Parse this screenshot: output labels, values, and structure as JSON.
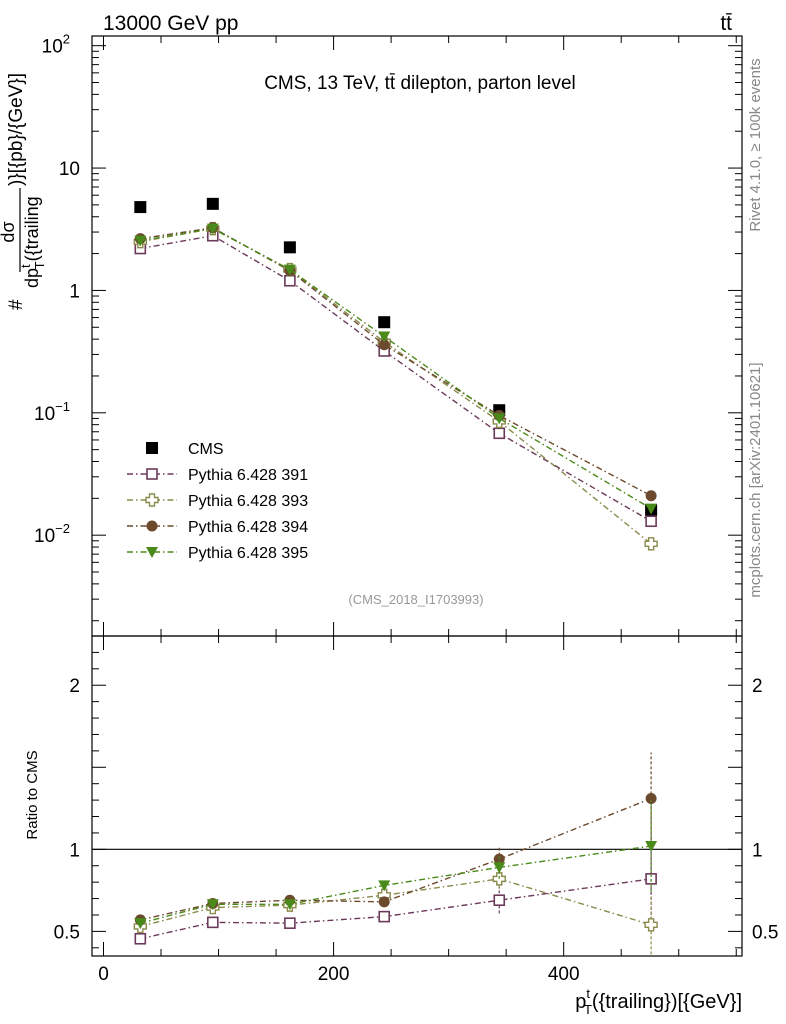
{
  "header": {
    "left": "13000 GeV pp",
    "right": "tt̄"
  },
  "side_labels": {
    "rivet": "Rivet 4.1.0, ≥ 100k events",
    "mcplots": "mcplots.cern.ch [arXiv:2401.10621]"
  },
  "chart_data": [
    {
      "type": "scatter",
      "title": "CMS, 13 TeV, tt̄ dilepton, parton level",
      "analysis_id": "(CMS_2018_I1703993)",
      "xlabel": "p_T^t({trailing})[{GeV}]",
      "ylabel": "#dσ/dp_T^t({trailing})}[{pb}/{GeV}]",
      "yscale": "log",
      "xlim": [
        -10,
        555
      ],
      "ylim": [
        0.0015,
        120
      ],
      "x_ticks": [
        0,
        200,
        400
      ],
      "y_ticks": [
        "10^-2",
        "10^-1",
        "1",
        "10",
        "10^2"
      ],
      "x": [
        32,
        95,
        162,
        244,
        344,
        476
      ],
      "series": [
        {
          "name": "CMS",
          "color": "#000000",
          "marker": "square-filled",
          "values": [
            4.8,
            5.1,
            2.25,
            0.55,
            0.105,
            0.016
          ]
        },
        {
          "name": "Pythia 6.428 391",
          "color": "#6b3a5b",
          "marker": "square-open",
          "line": "dash-dot",
          "values": [
            2.2,
            2.8,
            1.2,
            0.32,
            0.068,
            0.013
          ]
        },
        {
          "name": "Pythia 6.428 393",
          "color": "#8a8a4a",
          "marker": "cross-open",
          "line": "dash-dot",
          "values": [
            2.5,
            3.2,
            1.48,
            0.38,
            0.085,
            0.0085
          ]
        },
        {
          "name": "Pythia 6.428 394",
          "color": "#6b4a2e",
          "marker": "circle-filled",
          "line": "dash-dot",
          "values": [
            2.65,
            3.25,
            1.45,
            0.36,
            0.095,
            0.021
          ]
        },
        {
          "name": "Pythia 6.428 395",
          "color": "#4a8a1a",
          "marker": "triangle-down-filled",
          "line": "dash-dot",
          "values": [
            2.55,
            3.2,
            1.48,
            0.42,
            0.09,
            0.0165
          ]
        }
      ]
    },
    {
      "type": "scatter",
      "ylabel": "Ratio to CMS",
      "ylim": [
        0.35,
        2.3
      ],
      "y_ticks": [
        0.5,
        1,
        2
      ],
      "reference": 1,
      "x": [
        32,
        95,
        162,
        244,
        344,
        476
      ],
      "series": [
        {
          "name": "Pythia 6.428 391",
          "values": [
            0.455,
            0.555,
            0.55,
            0.59,
            0.69,
            0.82
          ],
          "errors": [
            0.01,
            0.01,
            0.015,
            0.03,
            0.08,
            0.25
          ]
        },
        {
          "name": "Pythia 6.428 393",
          "values": [
            0.53,
            0.645,
            0.66,
            0.72,
            0.82,
            0.54
          ],
          "errors": [
            0.01,
            0.015,
            0.02,
            0.03,
            0.06,
            0.18
          ]
        },
        {
          "name": "Pythia 6.428 394",
          "values": [
            0.57,
            0.67,
            0.69,
            0.68,
            0.94,
            1.31
          ],
          "errors": [
            0.01,
            0.015,
            0.02,
            0.03,
            0.07,
            0.28
          ]
        },
        {
          "name": "Pythia 6.428 395",
          "values": [
            0.55,
            0.665,
            0.665,
            0.78,
            0.89,
            1.02
          ],
          "errors": [
            0.01,
            0.015,
            0.02,
            0.03,
            0.07,
            0.28
          ]
        }
      ]
    }
  ]
}
